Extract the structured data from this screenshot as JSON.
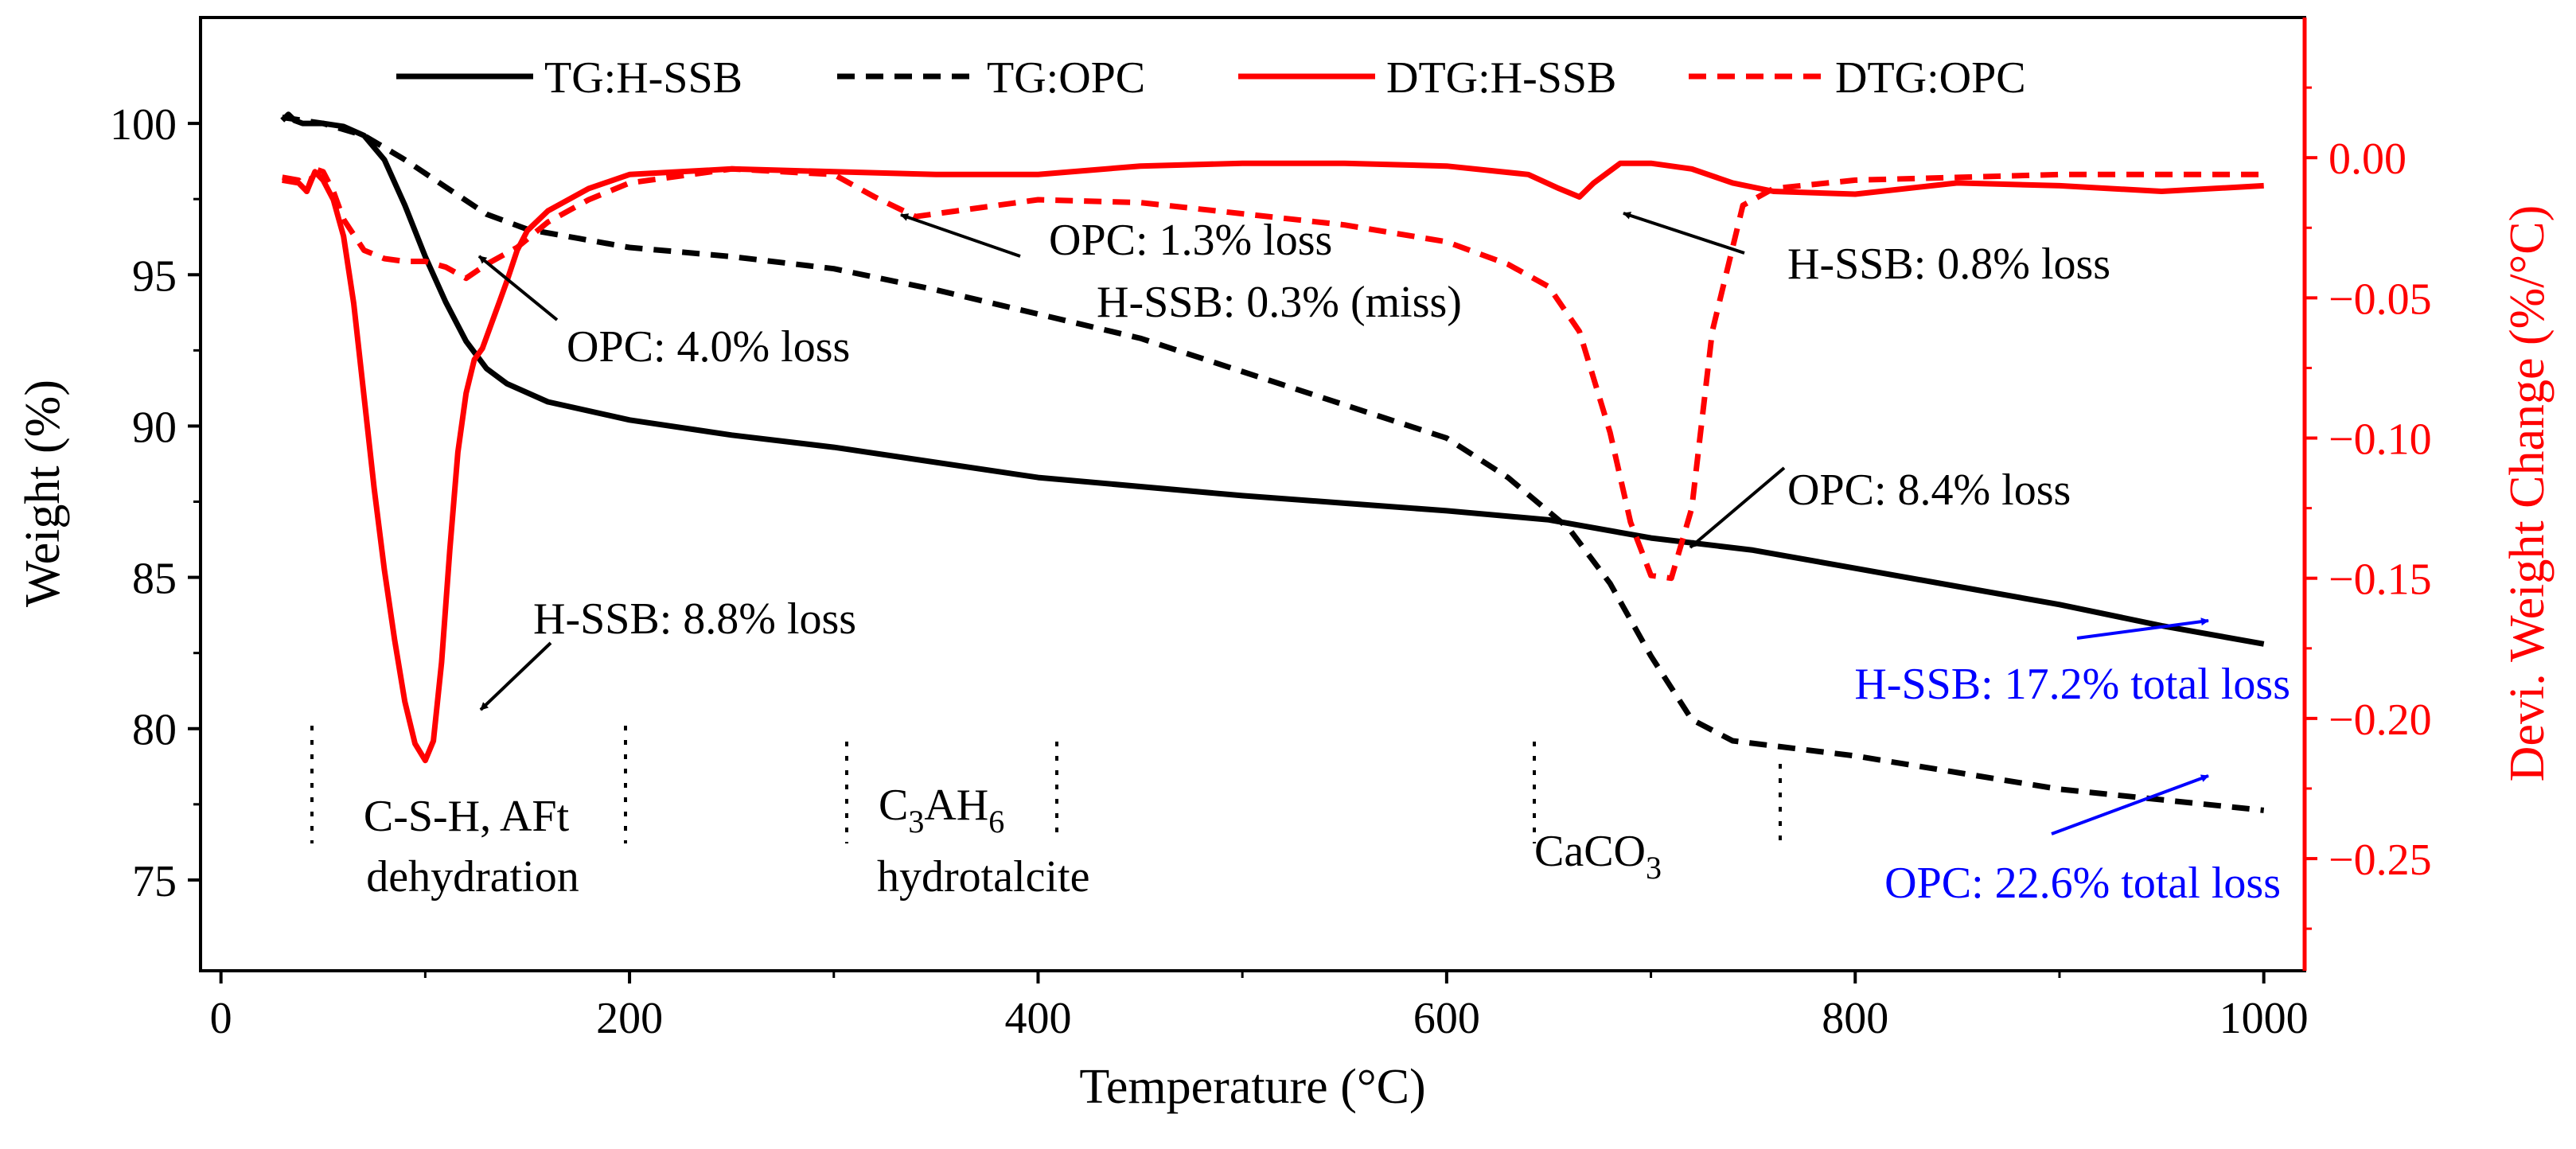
{
  "chart_data": {
    "type": "line",
    "xlabel": "Temperature (°C)",
    "ylabel_left": "Weight (%)",
    "ylabel_right": "Devi. Weight Change (%/°C)",
    "xlim": [
      -10,
      1020
    ],
    "ylim_left": [
      72,
      103.5
    ],
    "ylim_right": [
      -0.29,
      0.05
    ],
    "x_ticks": [
      0,
      200,
      400,
      600,
      800,
      1000
    ],
    "y_left_ticks": [
      75,
      80,
      85,
      90,
      95,
      100
    ],
    "y_right_ticks": [
      0.0,
      -0.05,
      -0.1,
      -0.15,
      -0.2,
      -0.25
    ],
    "y_right_tick_labels": [
      "0.00",
      "−0.05",
      "−0.10",
      "−0.15",
      "−0.20",
      "−0.25"
    ],
    "grid": false,
    "legend_position": "top",
    "colors": {
      "tg": "#000000",
      "dtg": "#ff0000",
      "total_loss": "#0000ff",
      "axis_right": "#ff0000"
    },
    "series": [
      {
        "name": "TG:H-SSB",
        "axis": "left",
        "color": "#000000",
        "dash": "solid",
        "x": [
          30,
          33,
          36,
          40,
          50,
          60,
          70,
          80,
          90,
          100,
          110,
          120,
          130,
          140,
          160,
          200,
          250,
          300,
          400,
          500,
          600,
          650,
          700,
          750,
          800,
          850,
          900,
          950,
          1000
        ],
        "y": [
          100.1,
          100.3,
          100.1,
          100.0,
          100.0,
          99.9,
          99.6,
          98.8,
          97.3,
          95.6,
          94.1,
          92.8,
          91.9,
          91.4,
          90.8,
          90.2,
          89.7,
          89.3,
          88.3,
          87.7,
          87.2,
          86.9,
          86.3,
          85.9,
          85.3,
          84.7,
          84.1,
          83.4,
          82.8
        ]
      },
      {
        "name": "TG:OPC",
        "axis": "left",
        "color": "#000000",
        "dash": "dashed",
        "x": [
          30,
          50,
          70,
          90,
          110,
          130,
          150,
          175,
          200,
          250,
          300,
          350,
          400,
          450,
          500,
          550,
          600,
          630,
          660,
          680,
          700,
          720,
          740,
          800,
          900,
          1000
        ],
        "y": [
          100.2,
          100.0,
          99.6,
          98.8,
          97.9,
          97.0,
          96.5,
          96.2,
          95.9,
          95.6,
          95.2,
          94.5,
          93.7,
          92.9,
          91.8,
          90.7,
          89.6,
          88.3,
          86.6,
          84.8,
          82.4,
          80.3,
          79.6,
          79.1,
          78.0,
          77.3
        ]
      },
      {
        "name": "DTG:H-SSB",
        "axis": "right",
        "color": "#ff0000",
        "dash": "solid",
        "x": [
          30,
          38,
          42,
          46,
          50,
          55,
          60,
          65,
          70,
          75,
          80,
          85,
          90,
          95,
          100,
          104,
          108,
          112,
          116,
          120,
          124,
          128,
          132,
          136,
          140,
          145,
          150,
          160,
          180,
          200,
          250,
          300,
          350,
          400,
          450,
          500,
          550,
          600,
          640,
          655,
          665,
          672,
          685,
          700,
          720,
          740,
          760,
          800,
          850,
          900,
          950,
          1000
        ],
        "y": [
          -0.008,
          -0.009,
          -0.012,
          -0.005,
          -0.008,
          -0.015,
          -0.028,
          -0.052,
          -0.085,
          -0.118,
          -0.147,
          -0.172,
          -0.194,
          -0.209,
          -0.215,
          -0.208,
          -0.18,
          -0.14,
          -0.105,
          -0.084,
          -0.072,
          -0.068,
          -0.06,
          -0.052,
          -0.044,
          -0.033,
          -0.026,
          -0.019,
          -0.011,
          -0.006,
          -0.004,
          -0.005,
          -0.006,
          -0.006,
          -0.003,
          -0.002,
          -0.002,
          -0.003,
          -0.006,
          -0.011,
          -0.014,
          -0.009,
          -0.002,
          -0.002,
          -0.004,
          -0.009,
          -0.012,
          -0.013,
          -0.009,
          -0.01,
          -0.012,
          -0.01
        ]
      },
      {
        "name": "DTG:OPC",
        "axis": "right",
        "color": "#ff0000",
        "dash": "dashed",
        "x": [
          30,
          38,
          42,
          46,
          50,
          55,
          60,
          70,
          80,
          90,
          100,
          110,
          120,
          130,
          145,
          160,
          180,
          200,
          250,
          300,
          320,
          340,
          360,
          400,
          450,
          500,
          550,
          600,
          630,
          650,
          665,
          680,
          690,
          700,
          710,
          720,
          730,
          745,
          760,
          800,
          900,
          1000
        ],
        "y": [
          -0.007,
          -0.008,
          -0.012,
          -0.004,
          -0.005,
          -0.012,
          -0.022,
          -0.033,
          -0.036,
          -0.037,
          -0.037,
          -0.039,
          -0.043,
          -0.038,
          -0.032,
          -0.023,
          -0.015,
          -0.009,
          -0.004,
          -0.006,
          -0.014,
          -0.021,
          -0.019,
          -0.015,
          -0.016,
          -0.02,
          -0.024,
          -0.03,
          -0.038,
          -0.046,
          -0.062,
          -0.098,
          -0.13,
          -0.149,
          -0.15,
          -0.125,
          -0.062,
          -0.017,
          -0.011,
          -0.008,
          -0.006,
          -0.006
        ]
      }
    ],
    "annotations": [
      {
        "key": "opc_4_0",
        "text": "OPC: 4.0% loss",
        "color": "#000000"
      },
      {
        "key": "opc_1_3",
        "text": "OPC: 1.3% loss",
        "color": "#000000"
      },
      {
        "key": "hssb_0_3",
        "text": "H-SSB: 0.3% (miss)",
        "color": "#000000"
      },
      {
        "key": "hssb_0_8",
        "text": "H-SSB: 0.8% loss",
        "color": "#000000"
      },
      {
        "key": "opc_8_4",
        "text": "OPC: 8.4% loss",
        "color": "#000000"
      },
      {
        "key": "hssb_8_8",
        "text": "H-SSB: 8.8% loss",
        "color": "#000000"
      },
      {
        "key": "hssb_total",
        "text": "H-SSB: 17.2% total loss",
        "color": "#0000ff"
      },
      {
        "key": "opc_total",
        "text": "OPC: 22.6% total loss",
        "color": "#0000ff"
      }
    ],
    "regions": {
      "csh_line1": "C-S-H, AFt",
      "csh_line2": "dehydration",
      "c3ah6_main": "C",
      "c3ah6_sub1": "3",
      "c3ah6_mid": "AH",
      "c3ah6_sub2": "6",
      "hydrotalcite": "hydrotalcite",
      "caco3_main": "CaCO",
      "caco3_sub": "3"
    }
  }
}
